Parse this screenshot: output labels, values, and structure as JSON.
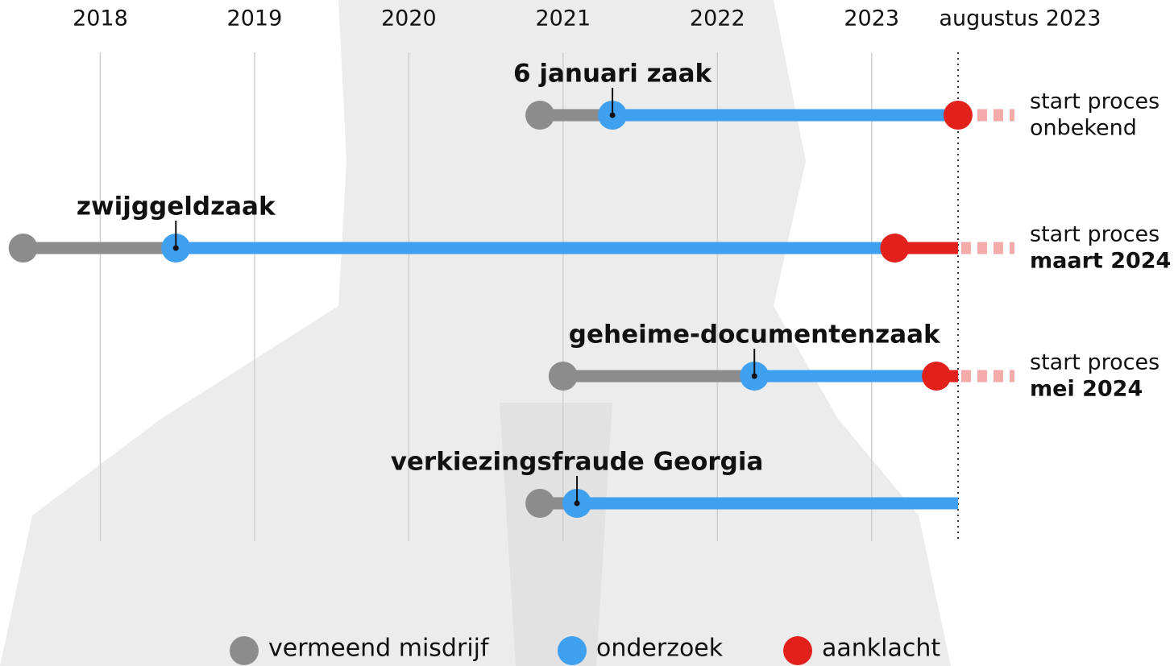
{
  "chart_data": {
    "type": "timeline",
    "xlim": [
      2017.35,
      2024.96
    ],
    "xticks": [
      2018,
      2019,
      2020,
      2021,
      2022,
      2023
    ],
    "now": {
      "value": 2023.56,
      "label": "augustus 2023"
    },
    "grid": true,
    "series": [
      {
        "name": "vermeend misdrijf",
        "color": "#8c8c8c"
      },
      {
        "name": "onderzoek",
        "color": "#3fa0ef"
      },
      {
        "name": "aanklacht",
        "color": "#e2211c"
      }
    ],
    "cases": [
      {
        "name": "6 januari zaak",
        "misdrijf": 2020.85,
        "onderzoek": 2021.32,
        "aanklacht": 2023.56,
        "outcome": [
          "start proces",
          "onbekend"
        ],
        "outcome_bold": false
      },
      {
        "name": "zwijggeldzaak",
        "misdrijf": 2017.5,
        "onderzoek": 2018.49,
        "aanklacht": 2023.15,
        "outcome": [
          "start proces",
          "maart 2024"
        ],
        "outcome_bold": true
      },
      {
        "name": "geheime-documentenzaak",
        "misdrijf": 2021.0,
        "onderzoek": 2022.24,
        "aanklacht": 2023.42,
        "outcome": [
          "start proces",
          "mei 2024"
        ],
        "outcome_bold": true
      },
      {
        "name": "verkiezingsfraude Georgia",
        "misdrijf": 2020.85,
        "onderzoek": 2021.09,
        "aanklacht": null
      }
    ]
  }
}
